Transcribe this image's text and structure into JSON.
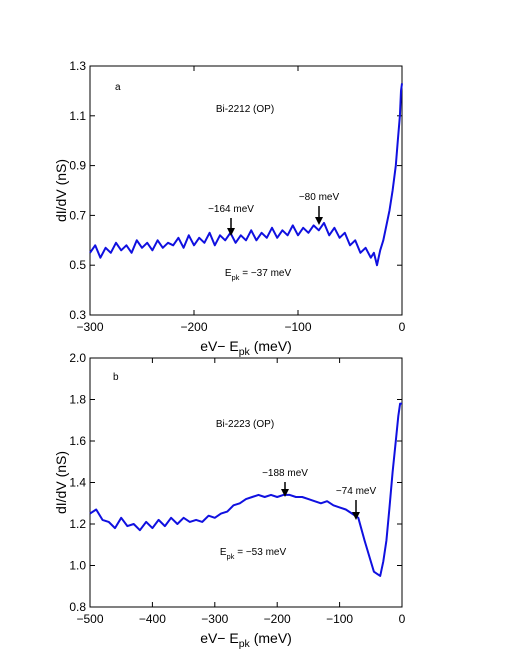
{
  "chart_data": [
    {
      "type": "line",
      "panel_label": "a",
      "title": "Bi-2212 (OP)",
      "xlabel": [
        "eV− E",
        "pk",
        " (meV)"
      ],
      "ylabel": "dI/dV (nS)",
      "epk_label": [
        "E",
        "pk",
        " = −37 meV"
      ],
      "annotations": [
        "−164 meV",
        "−80 meV"
      ],
      "color": "#1010e0",
      "xlim": [
        -300,
        0
      ],
      "ylim": [
        0.3,
        1.3
      ],
      "xticks": [
        {
          "value": -300,
          "label": "−300"
        },
        {
          "value": -200,
          "label": "−200"
        },
        {
          "value": -100,
          "label": "−100"
        },
        0
      ],
      "yticks": [
        0.3,
        0.5,
        0.7,
        0.9,
        1.1,
        1.3
      ],
      "x": [
        -300,
        -295,
        -290,
        -285,
        -280,
        -275,
        -270,
        -265,
        -260,
        -255,
        -250,
        -245,
        -240,
        -235,
        -230,
        -225,
        -220,
        -215,
        -210,
        -205,
        -200,
        -195,
        -190,
        -185,
        -180,
        -175,
        -170,
        -165,
        -160,
        -155,
        -150,
        -145,
        -140,
        -135,
        -130,
        -125,
        -120,
        -115,
        -110,
        -105,
        -100,
        -95,
        -90,
        -85,
        -80,
        -75,
        -70,
        -65,
        -60,
        -55,
        -50,
        -45,
        -40,
        -35,
        -30,
        -27,
        -24,
        -21,
        -18,
        -15,
        -12,
        -9,
        -6,
        -4,
        -2,
        -1,
        0
      ],
      "values": [
        0.55,
        0.58,
        0.53,
        0.57,
        0.55,
        0.59,
        0.56,
        0.58,
        0.55,
        0.6,
        0.57,
        0.59,
        0.56,
        0.6,
        0.57,
        0.59,
        0.58,
        0.61,
        0.57,
        0.62,
        0.58,
        0.61,
        0.59,
        0.63,
        0.58,
        0.62,
        0.6,
        0.63,
        0.59,
        0.62,
        0.6,
        0.64,
        0.6,
        0.63,
        0.61,
        0.65,
        0.61,
        0.64,
        0.62,
        0.66,
        0.62,
        0.65,
        0.63,
        0.66,
        0.64,
        0.67,
        0.62,
        0.65,
        0.61,
        0.63,
        0.58,
        0.6,
        0.55,
        0.57,
        0.53,
        0.55,
        0.5,
        0.56,
        0.6,
        0.66,
        0.72,
        0.8,
        0.9,
        1.0,
        1.1,
        1.2,
        1.23
      ]
    },
    {
      "type": "line",
      "panel_label": "b",
      "title": "Bi-2223 (OP)",
      "xlabel": [
        "eV− E",
        "pk",
        " (meV)"
      ],
      "ylabel": "dI/dV (nS)",
      "epk_label": [
        "E",
        "pk",
        " = −53 meV"
      ],
      "annotations": [
        "−188 meV",
        "−74 meV"
      ],
      "color": "#1010e0",
      "xlim": [
        -500,
        0
      ],
      "ylim": [
        0.8,
        2.0
      ],
      "xticks": [
        {
          "value": -500,
          "label": "−500"
        },
        {
          "value": -400,
          "label": "−400"
        },
        {
          "value": -300,
          "label": "−300"
        },
        {
          "value": -200,
          "label": "−200"
        },
        {
          "value": -100,
          "label": "−100"
        },
        0
      ],
      "yticks": [
        0.8,
        {
          "value": 1,
          "label": "1.0"
        },
        1.2,
        1.4,
        1.6,
        1.8,
        {
          "value": 2,
          "label": "2.0"
        }
      ],
      "x": [
        -500,
        -490,
        -480,
        -470,
        -460,
        -450,
        -440,
        -430,
        -420,
        -410,
        -400,
        -390,
        -380,
        -370,
        -360,
        -350,
        -340,
        -330,
        -320,
        -310,
        -300,
        -290,
        -280,
        -270,
        -260,
        -250,
        -240,
        -230,
        -220,
        -210,
        -200,
        -190,
        -180,
        -170,
        -160,
        -150,
        -140,
        -130,
        -120,
        -110,
        -100,
        -90,
        -80,
        -70,
        -60,
        -50,
        -45,
        -40,
        -35,
        -30,
        -25,
        -20,
        -15,
        -10,
        -6,
        -3,
        0
      ],
      "values": [
        1.25,
        1.27,
        1.22,
        1.21,
        1.18,
        1.23,
        1.19,
        1.2,
        1.17,
        1.21,
        1.18,
        1.22,
        1.19,
        1.23,
        1.2,
        1.23,
        1.21,
        1.22,
        1.21,
        1.24,
        1.23,
        1.25,
        1.26,
        1.29,
        1.3,
        1.32,
        1.33,
        1.34,
        1.33,
        1.34,
        1.33,
        1.34,
        1.34,
        1.33,
        1.33,
        1.32,
        1.31,
        1.3,
        1.31,
        1.29,
        1.28,
        1.27,
        1.25,
        1.23,
        1.12,
        1.02,
        0.97,
        0.96,
        0.95,
        1.02,
        1.12,
        1.28,
        1.45,
        1.6,
        1.72,
        1.78,
        1.78
      ]
    }
  ]
}
